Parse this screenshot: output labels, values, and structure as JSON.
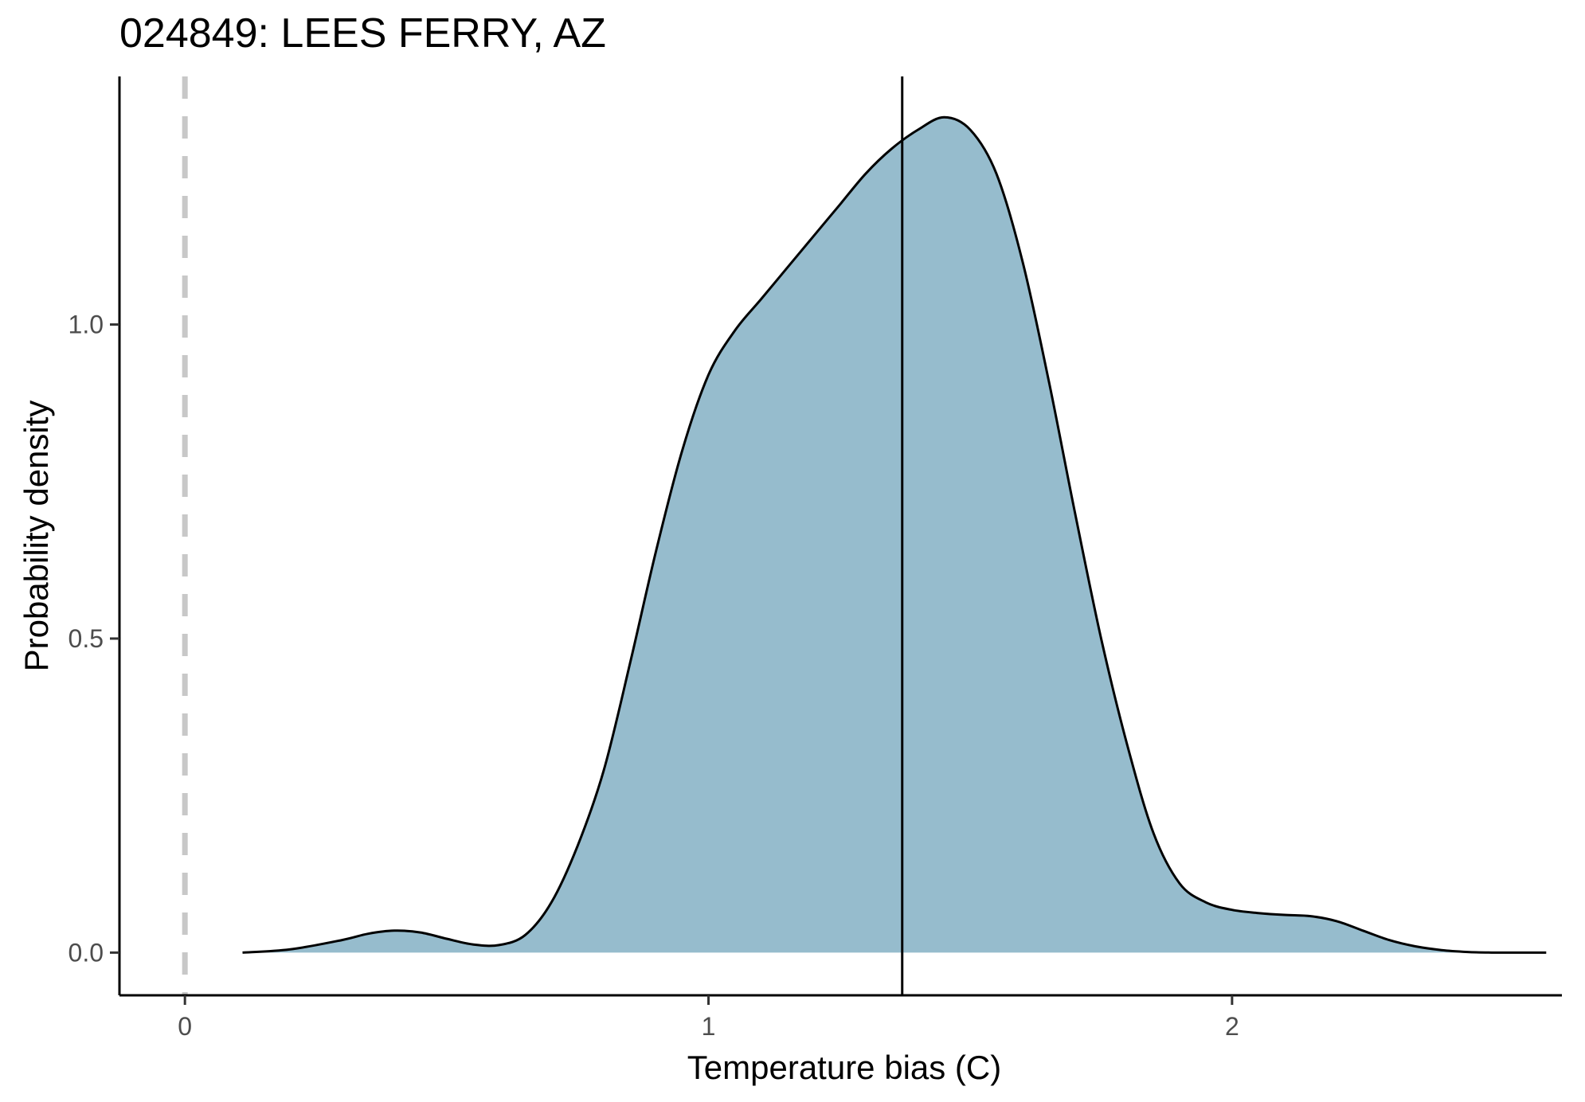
{
  "chart_data": {
    "type": "area",
    "title": "024849: LEES FERRY, AZ",
    "xlabel": "Temperature bias (C)",
    "ylabel": "Probability density",
    "xlim": [
      -0.125,
      2.63
    ],
    "ylim": [
      -0.068,
      1.395
    ],
    "x_ticks": [
      {
        "value": 0,
        "label": "0"
      },
      {
        "value": 1,
        "label": "1"
      },
      {
        "value": 2,
        "label": "2"
      }
    ],
    "y_ticks": [
      {
        "value": 0.0,
        "label": "0.0"
      },
      {
        "value": 0.5,
        "label": "0.5"
      },
      {
        "value": 1.0,
        "label": "1.0"
      }
    ],
    "grid": false,
    "fill_color": "#96bccd",
    "line_color": "#000000",
    "density": {
      "x": [
        0.11,
        0.2,
        0.3,
        0.35,
        0.4,
        0.45,
        0.5,
        0.55,
        0.6,
        0.65,
        0.7,
        0.75,
        0.8,
        0.85,
        0.9,
        0.95,
        1.0,
        1.05,
        1.1,
        1.15,
        1.2,
        1.25,
        1.3,
        1.35,
        1.4,
        1.45,
        1.5,
        1.55,
        1.6,
        1.65,
        1.7,
        1.75,
        1.8,
        1.85,
        1.9,
        1.95,
        2.0,
        2.05,
        2.1,
        2.15,
        2.2,
        2.25,
        2.3,
        2.35,
        2.4,
        2.45,
        2.5,
        2.55,
        2.6
      ],
      "y": [
        0.0,
        0.005,
        0.02,
        0.03,
        0.035,
        0.032,
        0.022,
        0.013,
        0.012,
        0.028,
        0.08,
        0.17,
        0.29,
        0.46,
        0.64,
        0.8,
        0.92,
        0.99,
        1.04,
        1.09,
        1.14,
        1.19,
        1.24,
        1.28,
        1.31,
        1.33,
        1.31,
        1.24,
        1.1,
        0.91,
        0.7,
        0.5,
        0.33,
        0.19,
        0.11,
        0.08,
        0.068,
        0.063,
        0.06,
        0.058,
        0.05,
        0.035,
        0.02,
        0.01,
        0.004,
        0.001,
        0.0,
        0.0,
        0.0
      ]
    },
    "vertical_lines": [
      {
        "x": 1.37,
        "style": "solid",
        "color": "#000000"
      },
      {
        "x": 0.0,
        "style": "dashed",
        "color": "#c8c8c8"
      }
    ]
  }
}
